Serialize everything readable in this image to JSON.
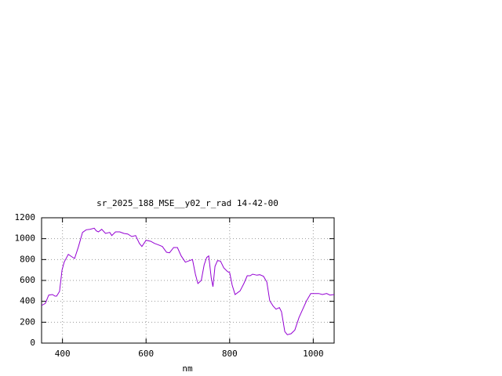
{
  "chart_data": {
    "type": "line",
    "title": "sr_2025_188_MSE__y02_r_rad 14-42-00",
    "x_label": "nm",
    "x": [
      350,
      359,
      367,
      376,
      382,
      386,
      393,
      399,
      404,
      414,
      423,
      429,
      438,
      448,
      457,
      466,
      476,
      481,
      486,
      494,
      503,
      513,
      518,
      527,
      537,
      547,
      556,
      566,
      575,
      584,
      590,
      600,
      611,
      620,
      630,
      639,
      649,
      656,
      666,
      675,
      684,
      694,
      701,
      711,
      718,
      724,
      732,
      739,
      745,
      750,
      756,
      760,
      765,
      771,
      778,
      786,
      795,
      800,
      806,
      813,
      825,
      834,
      842,
      849,
      855,
      865,
      872,
      881,
      889,
      896,
      904,
      911,
      919,
      924,
      932,
      938,
      947,
      956,
      966,
      975,
      984,
      994,
      1003,
      1013,
      1022,
      1032,
      1040,
      1050
    ],
    "series": [
      {
        "color": "#9400d3",
        "values": [
          360,
          380,
          460,
          465,
          450,
          450,
          495,
          700,
          775,
          850,
          825,
          810,
          920,
          1060,
          1085,
          1090,
          1100,
          1075,
          1065,
          1090,
          1050,
          1060,
          1030,
          1065,
          1065,
          1050,
          1045,
          1020,
          1030,
          955,
          925,
          985,
          975,
          955,
          940,
          925,
          870,
          865,
          915,
          915,
          835,
          775,
          785,
          800,
          660,
          570,
          600,
          750,
          820,
          835,
          625,
          540,
          735,
          790,
          785,
          720,
          685,
          675,
          555,
          465,
          500,
          570,
          645,
          645,
          660,
          650,
          655,
          640,
          585,
          405,
          355,
          325,
          340,
          300,
          110,
          80,
          90,
          125,
          245,
          325,
          405,
          475,
          475,
          475,
          465,
          475,
          460,
          465
        ]
      }
    ],
    "xlim": [
      350,
      1050
    ],
    "ylim": [
      0,
      1200
    ],
    "xticks": [
      400,
      600,
      800,
      1000
    ],
    "yticks": [
      0,
      200,
      400,
      600,
      800,
      1000,
      1200
    ],
    "grid": true
  }
}
